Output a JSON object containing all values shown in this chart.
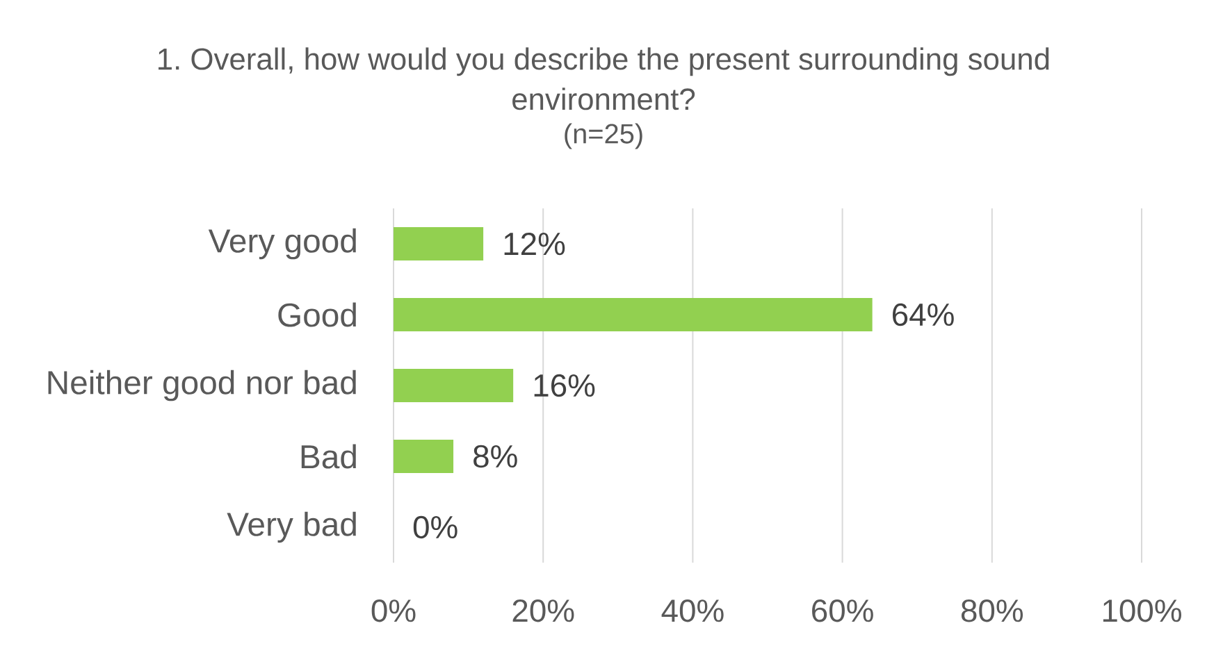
{
  "chart_data": {
    "type": "bar",
    "orientation": "horizontal",
    "title": "1. Overall, how would you describe the present surrounding sound environment?",
    "subtitle": "(n=25)",
    "categories": [
      "Very good",
      "Good",
      "Neither good nor bad",
      "Bad",
      "Very bad"
    ],
    "values": [
      12,
      64,
      16,
      8,
      0
    ],
    "value_labels": [
      "12%",
      "64%",
      "16%",
      "8%",
      "0%"
    ],
    "color": "#92d050",
    "xlim": [
      0,
      100
    ],
    "xticks": [
      {
        "value": 0,
        "label": "0%"
      },
      {
        "value": 20,
        "label": "20%"
      },
      {
        "value": 40,
        "label": "40%"
      },
      {
        "value": 60,
        "label": "60%"
      },
      {
        "value": 80,
        "label": "80%"
      },
      {
        "value": 100,
        "label": "100%"
      }
    ],
    "grid": "x"
  }
}
